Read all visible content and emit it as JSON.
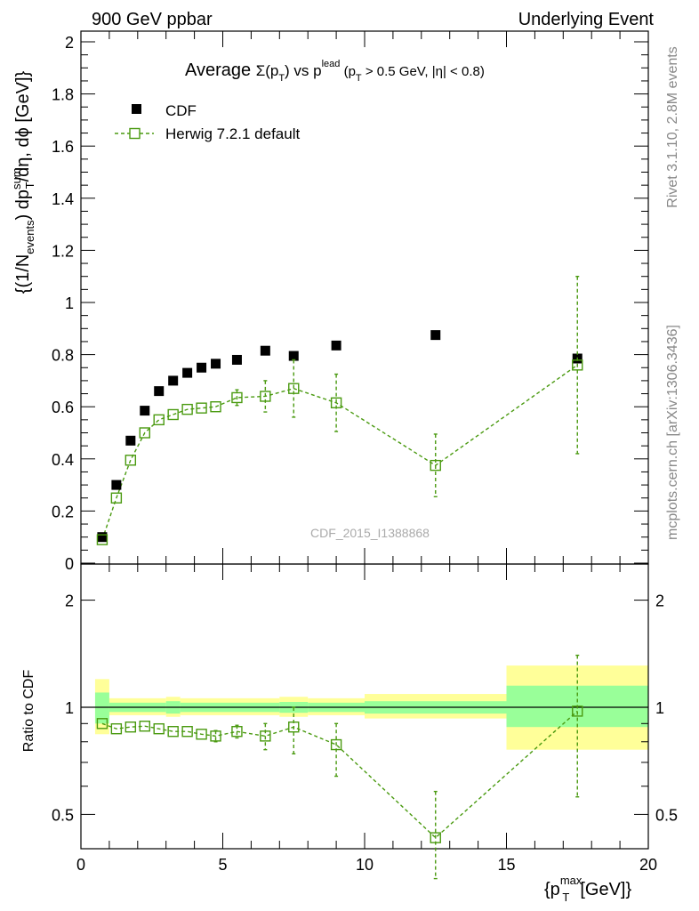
{
  "header": {
    "left": "900 GeV ppbar",
    "right": "Underlying Event"
  },
  "side_labels": {
    "top": "Rivet 3.1.10,  2.8M events",
    "bottom": "mcplots.cern.ch [arXiv:1306.3436]"
  },
  "watermark": "CDF_2015_I1388868",
  "main_title": {
    "lead": "Average ",
    "sigma": "Σ(p",
    "sub_t": "T",
    "mid": ") vs p",
    "sup_lead": "lead",
    "rest": " (p",
    "rest2": " > 0.5 GeV, |η| < 0.8)"
  },
  "colors": {
    "data": "#000000",
    "mc": "#4a9a10",
    "band_inner": "#99ff99",
    "band_outer": "#ffff99"
  },
  "chart_data": [
    {
      "type": "scatter",
      "panel": "main",
      "ylabel": "{(1/N_events) dp_T^sum/dη, dϕ [GeV]}",
      "xlim": [
        0,
        20
      ],
      "ylim": [
        0,
        2.05
      ],
      "y_ticks": [
        0,
        0.2,
        0.4,
        0.6,
        0.8,
        1,
        1.2,
        1.4,
        1.6,
        1.8,
        2
      ],
      "y_tick_labels": [
        "0",
        "0.2",
        "0.4",
        "0.6",
        "0.8",
        "1",
        "1.2",
        "1.4",
        "1.6",
        "1.8",
        "2"
      ],
      "legend": [
        "CDF",
        "Herwig 7.2.1 default"
      ],
      "legend_position": "top-left",
      "series": [
        {
          "name": "CDF",
          "x": [
            0.75,
            1.25,
            1.75,
            2.25,
            2.75,
            3.25,
            3.75,
            4.25,
            4.75,
            5.5,
            6.5,
            7.5,
            9.0,
            12.5,
            17.5
          ],
          "y": [
            0.1,
            0.3,
            0.47,
            0.585,
            0.66,
            0.7,
            0.73,
            0.75,
            0.765,
            0.78,
            0.815,
            0.795,
            0.835,
            0.875,
            0.785
          ]
        },
        {
          "name": "Herwig 7.2.1 default",
          "x": [
            0.75,
            1.25,
            1.75,
            2.25,
            2.75,
            3.25,
            3.75,
            4.25,
            4.75,
            5.5,
            6.5,
            7.5,
            9.0,
            12.5,
            17.5
          ],
          "y": [
            0.09,
            0.25,
            0.395,
            0.5,
            0.55,
            0.57,
            0.59,
            0.595,
            0.6,
            0.635,
            0.64,
            0.67,
            0.615,
            0.375,
            0.76
          ],
          "err": [
            0.01,
            0.01,
            0.01,
            0.01,
            0.01,
            0.01,
            0.01,
            0.015,
            0.02,
            0.03,
            0.06,
            0.11,
            0.11,
            0.12,
            0.34
          ]
        }
      ]
    },
    {
      "type": "line",
      "panel": "ratio",
      "ylabel": "Ratio to CDF",
      "xlabel": "{p_T^max [GeV]}",
      "xlim": [
        0,
        20
      ],
      "ylim": [
        0.4,
        2.45
      ],
      "y_scale": "log",
      "x_ticks": [
        0,
        5,
        10,
        15,
        20
      ],
      "x_tick_labels": [
        "0",
        "5",
        "10",
        "15",
        "20"
      ],
      "y_ticks": [
        0.5,
        1,
        2
      ],
      "y_tick_labels": [
        "0.5",
        "1",
        "2"
      ],
      "bands": [
        {
          "x0": 0.5,
          "x1": 1.0,
          "inner": [
            0.9,
            1.1
          ],
          "outer": [
            0.84,
            1.2
          ]
        },
        {
          "x0": 1.0,
          "x1": 3.0,
          "inner": [
            0.97,
            1.03
          ],
          "outer": [
            0.95,
            1.06
          ]
        },
        {
          "x0": 3.0,
          "x1": 3.5,
          "inner": [
            0.96,
            1.04
          ],
          "outer": [
            0.94,
            1.07
          ]
        },
        {
          "x0": 3.5,
          "x1": 7.0,
          "inner": [
            0.97,
            1.03
          ],
          "outer": [
            0.95,
            1.06
          ]
        },
        {
          "x0": 7.0,
          "x1": 8.0,
          "inner": [
            0.965,
            1.035
          ],
          "outer": [
            0.94,
            1.07
          ]
        },
        {
          "x0": 8.0,
          "x1": 10.0,
          "inner": [
            0.97,
            1.03
          ],
          "outer": [
            0.95,
            1.06
          ]
        },
        {
          "x0": 10.0,
          "x1": 15.0,
          "inner": [
            0.96,
            1.04
          ],
          "outer": [
            0.93,
            1.09
          ]
        },
        {
          "x0": 15.0,
          "x1": 20.0,
          "inner": [
            0.88,
            1.15
          ],
          "outer": [
            0.76,
            1.31
          ]
        }
      ],
      "series": [
        {
          "name": "Herwig 7.2.1 default",
          "x": [
            0.75,
            1.25,
            1.75,
            2.25,
            2.75,
            3.25,
            3.75,
            4.25,
            4.75,
            5.5,
            6.5,
            7.5,
            9.0,
            12.5,
            17.5
          ],
          "y": [
            0.9,
            0.87,
            0.88,
            0.885,
            0.87,
            0.855,
            0.855,
            0.84,
            0.83,
            0.855,
            0.83,
            0.88,
            0.785,
            0.43,
            0.975
          ],
          "lo": [
            0.89,
            0.86,
            0.87,
            0.875,
            0.86,
            0.845,
            0.845,
            0.82,
            0.8,
            0.82,
            0.76,
            0.74,
            0.64,
            0.33,
            0.56
          ],
          "hi": [
            0.91,
            0.88,
            0.89,
            0.895,
            0.88,
            0.865,
            0.865,
            0.86,
            0.86,
            0.89,
            0.9,
            1.0,
            0.9,
            0.58,
            1.4
          ]
        }
      ]
    }
  ]
}
